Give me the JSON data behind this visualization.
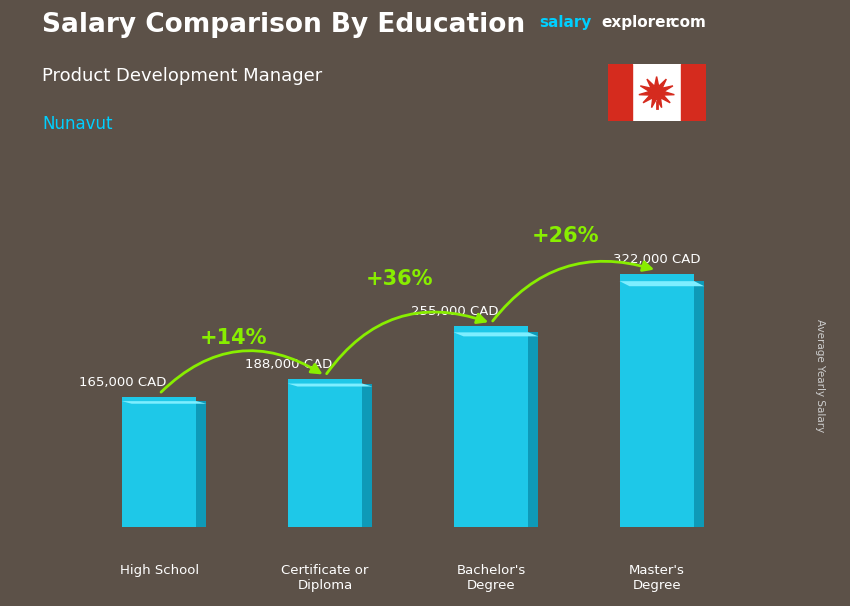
{
  "title_line1": "Salary Comparison By Education",
  "subtitle": "Product Development Manager",
  "location": "Nunavut",
  "categories": [
    "High School",
    "Certificate or\nDiploma",
    "Bachelor's\nDegree",
    "Master's\nDegree"
  ],
  "values": [
    165000,
    188000,
    255000,
    322000
  ],
  "value_labels": [
    "165,000 CAD",
    "188,000 CAD",
    "255,000 CAD",
    "322,000 CAD"
  ],
  "pct_changes": [
    "+14%",
    "+36%",
    "+26%"
  ],
  "bar_color": "#1ec8e8",
  "bar_color_side": "#0e9ab8",
  "bar_color_top_face": "#5dd8f0",
  "background_color": "#5c5148",
  "title_color": "#ffffff",
  "subtitle_color": "#ffffff",
  "location_color": "#00cfff",
  "label_color": "#ffffff",
  "pct_color": "#88ee00",
  "salary_color": "#00cfff",
  "explorer_color": "#ffffff",
  "axis_label": "Average Yearly Salary",
  "ylim_max": 400000,
  "bar_width": 0.45,
  "value_label_offsets": [
    0,
    0,
    0,
    0
  ]
}
